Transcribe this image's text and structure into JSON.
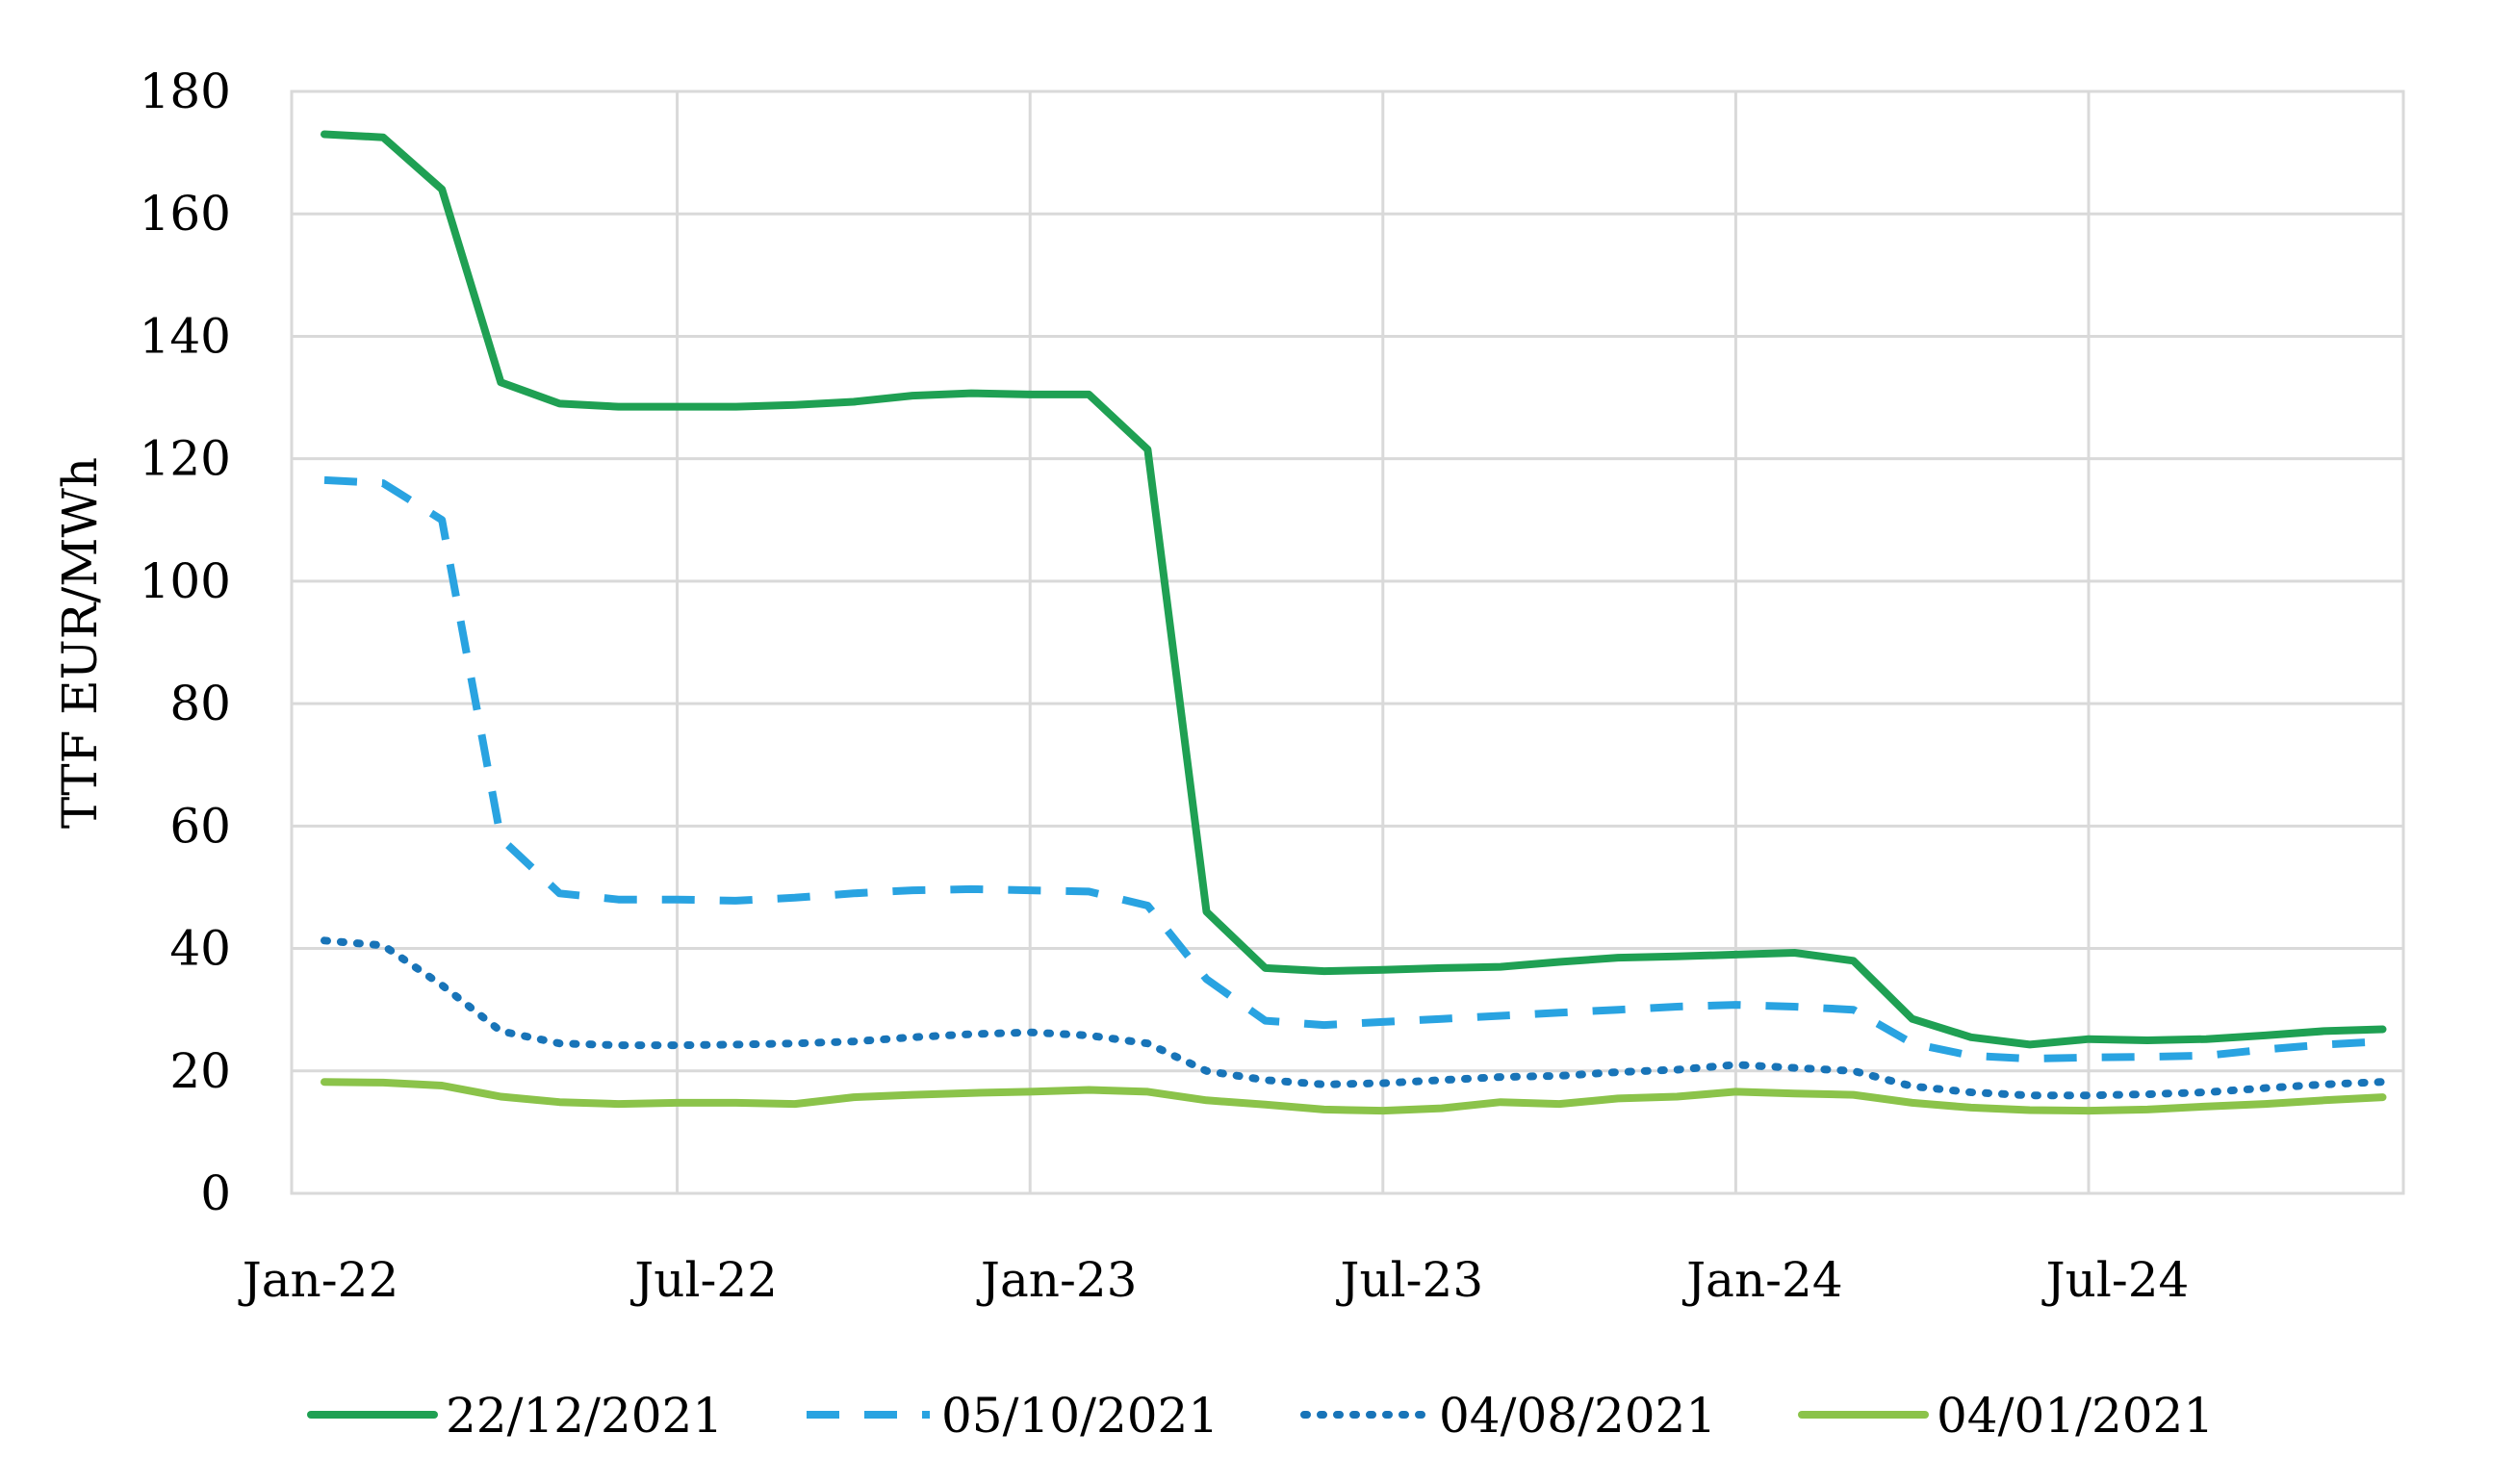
{
  "chart_data": {
    "type": "line",
    "title": "",
    "xlabel": "",
    "ylabel": "TTF EUR/MWh",
    "x": [
      "Jan-22",
      "Feb-22",
      "Mar-22",
      "Apr-22",
      "May-22",
      "Jun-22",
      "Jul-22",
      "Aug-22",
      "Sep-22",
      "Oct-22",
      "Nov-22",
      "Dec-22",
      "Jan-23",
      "Feb-23",
      "Mar-23",
      "Apr-23",
      "May-23",
      "Jun-23",
      "Jul-23",
      "Aug-23",
      "Sep-23",
      "Oct-23",
      "Nov-23",
      "Dec-23",
      "Jan-24",
      "Feb-24",
      "Mar-24",
      "Apr-24",
      "May-24",
      "Jun-24",
      "Jul-24",
      "Aug-24",
      "Sep-24",
      "Oct-24",
      "Nov-24",
      "Dec-24"
    ],
    "x_tick_labels": [
      "Jan-22",
      "Jul-22",
      "Jan-23",
      "Jul-23",
      "Jan-24",
      "Jul-24"
    ],
    "ylim": [
      0,
      180
    ],
    "y_ticks": [
      0,
      20,
      40,
      60,
      80,
      100,
      120,
      140,
      160,
      180
    ],
    "grid": true,
    "legend_position": "bottom",
    "series": [
      {
        "name": "22/12/2021",
        "color": "#1fa053",
        "style": "solid",
        "values": [
          173,
          172.5,
          164,
          132.5,
          129,
          128.5,
          128.5,
          128.5,
          128.8,
          129.3,
          130.3,
          130.7,
          130.5,
          130.5,
          121.5,
          46,
          36.8,
          36.3,
          36.5,
          36.8,
          37,
          37.8,
          38.5,
          38.7,
          39,
          39.3,
          38,
          28.5,
          25.5,
          24.3,
          25.2,
          25,
          25.2,
          25.8,
          26.5,
          26.8
        ]
      },
      {
        "name": "05/10/2021",
        "color": "#29a3e1",
        "style": "dashed",
        "values": [
          116.5,
          116,
          110,
          58,
          49,
          48,
          48,
          47.8,
          48.3,
          49,
          49.5,
          49.7,
          49.5,
          49.3,
          47,
          35,
          28.2,
          27.5,
          28,
          28.5,
          29,
          29.5,
          30,
          30.5,
          30.8,
          30.5,
          30,
          24.5,
          22.5,
          22,
          22.2,
          22.3,
          22.5,
          23.5,
          24.3,
          24.8
        ]
      },
      {
        "name": "04/08/2021",
        "color": "#1874b8",
        "style": "dotted",
        "values": [
          41.3,
          40.5,
          34,
          26.5,
          24.5,
          24.2,
          24.2,
          24.3,
          24.5,
          24.8,
          25.5,
          26,
          26.3,
          25.8,
          24.5,
          20,
          18.5,
          17.8,
          18,
          18.5,
          19,
          19.2,
          19.8,
          20.2,
          21,
          20.5,
          20,
          17.5,
          16.5,
          16,
          16,
          16.2,
          16.5,
          17.2,
          17.8,
          18.2
        ]
      },
      {
        "name": "04/01/2021",
        "color": "#8bc34a",
        "style": "solid",
        "values": [
          18.2,
          18.1,
          17.6,
          15.8,
          14.9,
          14.6,
          14.8,
          14.8,
          14.6,
          15.7,
          16.1,
          16.4,
          16.6,
          16.9,
          16.6,
          15.2,
          14.5,
          13.7,
          13.5,
          13.9,
          14.9,
          14.6,
          15.5,
          15.8,
          16.6,
          16.3,
          16.1,
          14.8,
          14,
          13.6,
          13.5,
          13.7,
          14.2,
          14.6,
          15.2,
          15.7
        ]
      }
    ]
  }
}
